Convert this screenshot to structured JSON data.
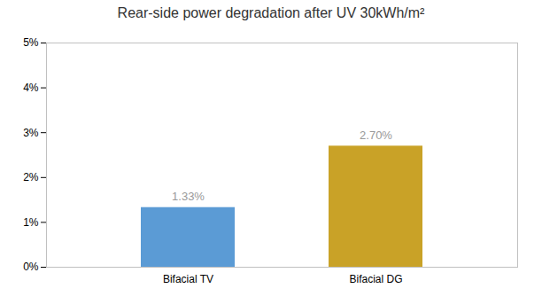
{
  "chart_data": {
    "type": "bar",
    "title": "Rear-side power degradation after UV 30kWh/m²",
    "categories": [
      "Bifacial TV",
      "Bifacial DG"
    ],
    "values": [
      1.33,
      2.7
    ],
    "value_labels": [
      "1.33%",
      "2.70%"
    ],
    "colors": [
      "#5B9BD5",
      "#C9A227"
    ],
    "ylim": [
      0,
      5
    ],
    "yticks": [
      {
        "value": 0,
        "label": "0%"
      },
      {
        "value": 1,
        "label": "1%"
      },
      {
        "value": 2,
        "label": "2%"
      },
      {
        "value": 3,
        "label": "3%"
      },
      {
        "value": 4,
        "label": "4%"
      },
      {
        "value": 5,
        "label": "5%"
      }
    ],
    "grid": false,
    "data_labels": true
  }
}
